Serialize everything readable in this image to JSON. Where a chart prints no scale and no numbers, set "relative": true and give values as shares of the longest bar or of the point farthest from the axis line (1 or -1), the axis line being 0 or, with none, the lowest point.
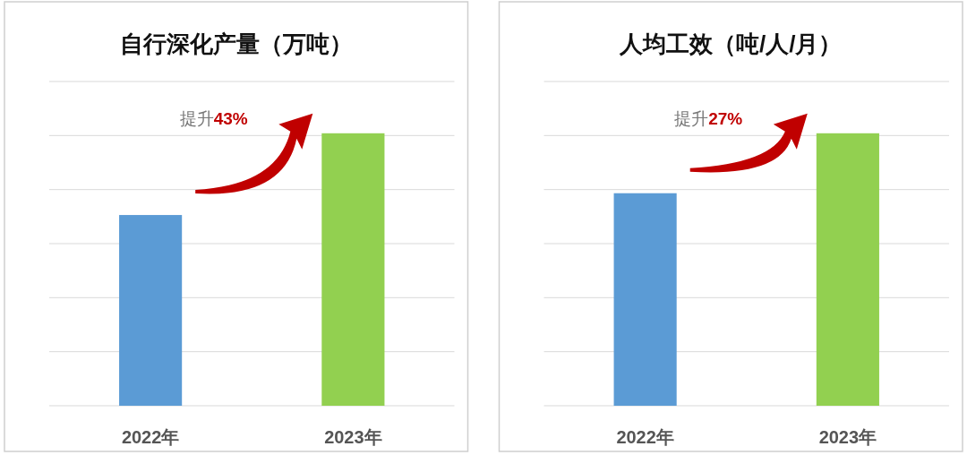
{
  "chart_data": [
    {
      "type": "bar",
      "title": "自行深化产量（万吨）",
      "categories": [
        "2022年",
        "2023年"
      ],
      "values": [
        0.7,
        1
      ],
      "colors": [
        "#5b9bd5",
        "#92d050"
      ],
      "relative": true,
      "grid": "y",
      "annotations": [
        "提升43%"
      ]
    },
    {
      "type": "bar",
      "title": "人均工效（吨/人/月）",
      "categories": [
        "2022年",
        "2023年"
      ],
      "values": [
        0.78,
        1
      ],
      "colors": [
        "#5b9bd5",
        "#92d050"
      ],
      "relative": true,
      "grid": "y",
      "annotations": [
        "提升27%"
      ]
    }
  ]
}
